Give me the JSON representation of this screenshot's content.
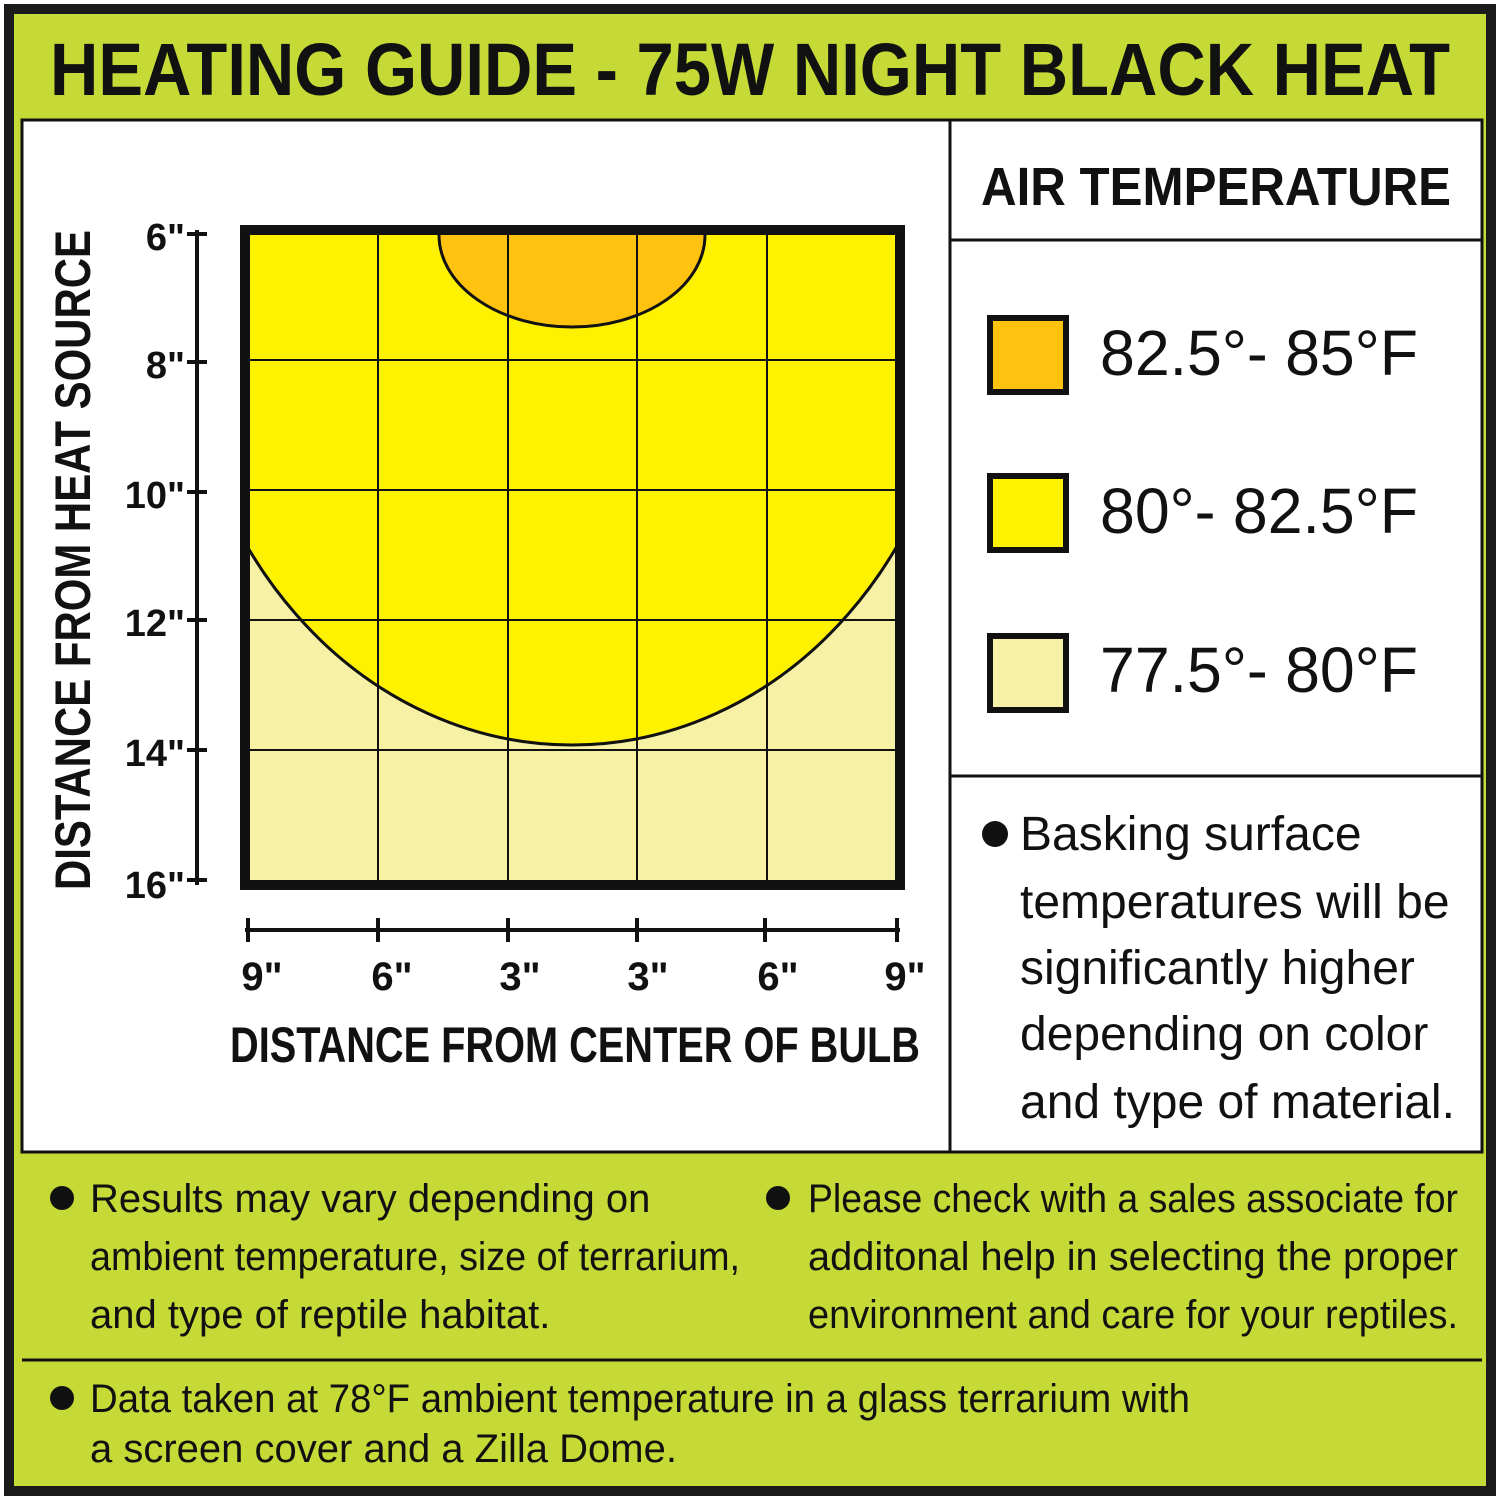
{
  "header": {
    "title": "HEATING GUIDE - 75W NIGHT BLACK HEAT"
  },
  "graph": {
    "y_axis_label": "DISTANCE FROM HEAT SOURCE",
    "y_ticks": [
      "6\"",
      "8\"",
      "10\"",
      "12\"",
      "14\"",
      "16\""
    ],
    "x_axis_label": "DISTANCE FROM CENTER OF BULB",
    "x_ticks": [
      "9\"",
      "6\"",
      "3\"",
      "3\"",
      "6\"",
      "9\""
    ]
  },
  "legend": {
    "title": "AIR TEMPERATURE",
    "items": [
      "82.5°- 85°F",
      "80°- 82.5°F",
      "77.5°- 80°F"
    ]
  },
  "side_note": [
    "Basking surface",
    "temperatures will be",
    "significantly higher",
    "depending on color",
    "and type of material."
  ],
  "notes": [
    [
      "Results may vary depending on",
      "ambient temperature, size of terrarium,",
      "and type of reptile habitat."
    ],
    [
      "Please check with a sales associate for",
      "additonal help in selecting the proper",
      "environment and care for your reptiles."
    ],
    [
      "Data taken at 78°F ambient temperature in a glass terrarium with",
      "a screen cover and a Zilla Dome."
    ]
  ]
}
